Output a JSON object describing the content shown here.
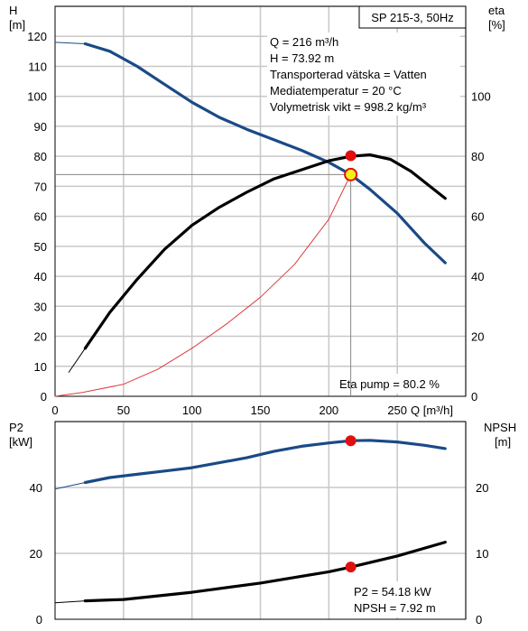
{
  "chart_data": [
    {
      "type": "line",
      "title": "SP 215-3, 50Hz",
      "xlabel": "Q [m³/h]",
      "ylabel_left": [
        "H",
        "[m]"
      ],
      "ylabel_right": [
        "eta",
        "[%]"
      ],
      "xlim": [
        0,
        300
      ],
      "ylim_left": [
        0,
        130
      ],
      "ylim_right": [
        0,
        130
      ],
      "x_ticks": [
        0,
        50,
        100,
        150,
        200,
        250
      ],
      "y_ticks_left": [
        0,
        10,
        20,
        30,
        40,
        50,
        60,
        70,
        80,
        90,
        100,
        110,
        120
      ],
      "y_ticks_right": [
        0,
        20,
        40,
        60,
        80,
        100
      ],
      "grid": true,
      "series": [
        {
          "name": "H",
          "axis": "left",
          "color": "#1a4a86",
          "points": [
            [
              22,
              117.5
            ],
            [
              40,
              115
            ],
            [
              60,
              110
            ],
            [
              80,
              104
            ],
            [
              100,
              98
            ],
            [
              120,
              93
            ],
            [
              140,
              89
            ],
            [
              160,
              85.5
            ],
            [
              180,
              82
            ],
            [
              200,
              78
            ],
            [
              216,
              73.9
            ],
            [
              230,
              69
            ],
            [
              250,
              61
            ],
            [
              270,
              51
            ],
            [
              285,
              44.5
            ]
          ]
        },
        {
          "name": "H (extrapolated)",
          "axis": "left",
          "color": "#1a4a86",
          "points": [
            [
              0,
              118
            ],
            [
              22,
              117.5
            ]
          ]
        },
        {
          "name": "eta",
          "axis": "right",
          "color": "#000000",
          "points": [
            [
              22,
              16
            ],
            [
              40,
              28
            ],
            [
              60,
              39
            ],
            [
              80,
              49
            ],
            [
              100,
              57
            ],
            [
              120,
              63
            ],
            [
              140,
              68
            ],
            [
              160,
              72.5
            ],
            [
              180,
              75.5
            ],
            [
              200,
              78.5
            ],
            [
              216,
              80
            ],
            [
              230,
              80.5
            ],
            [
              245,
              79
            ],
            [
              260,
              75
            ],
            [
              285,
              66
            ]
          ]
        },
        {
          "name": "eta (extrapolated)",
          "axis": "right",
          "color": "#000000",
          "points": [
            [
              10,
              8
            ],
            [
              22,
              16
            ]
          ]
        },
        {
          "name": "system curve",
          "axis": "left",
          "color": "#e03a3a",
          "points": [
            [
              0,
              0
            ],
            [
              20,
              1.3
            ],
            [
              50,
              4
            ],
            [
              75,
              9
            ],
            [
              100,
              16
            ],
            [
              125,
              24
            ],
            [
              150,
              33
            ],
            [
              175,
              44
            ],
            [
              200,
              59
            ],
            [
              216,
              73.9
            ]
          ]
        }
      ],
      "operating_point": {
        "x": 216,
        "y_left": 73.92,
        "eta": 80.2
      },
      "annotations": {
        "info_lines": [
          "Q = 216 m³/h",
          "H = 73.92 m",
          "Transporterad vätska = Vatten",
          "Mediatemperatur = 20 °C",
          "Volymetrisk vikt = 998.2 kg/m³"
        ],
        "eta_label": "Eta pump = 80.2 %"
      }
    },
    {
      "type": "line",
      "ylabel_left": [
        "P2",
        "[kW]"
      ],
      "ylabel_right": [
        "NPSH",
        "[m]"
      ],
      "xlim": [
        0,
        300
      ],
      "ylim_left": [
        0,
        60
      ],
      "ylim_right": [
        0,
        30
      ],
      "y_ticks_left": [
        0,
        20,
        40
      ],
      "y_ticks_right": [
        0,
        10,
        20
      ],
      "grid": true,
      "series": [
        {
          "name": "P2",
          "axis": "left",
          "color": "#1a4a86",
          "points": [
            [
              22,
              41.5
            ],
            [
              40,
              43
            ],
            [
              60,
              44
            ],
            [
              80,
              45
            ],
            [
              100,
              46
            ],
            [
              120,
              47.5
            ],
            [
              140,
              49
            ],
            [
              160,
              51
            ],
            [
              180,
              52.5
            ],
            [
              200,
              53.5
            ],
            [
              216,
              54.2
            ],
            [
              230,
              54.3
            ],
            [
              250,
              53.8
            ],
            [
              270,
              52.8
            ],
            [
              285,
              51.8
            ]
          ]
        },
        {
          "name": "P2 (extrapolated)",
          "axis": "left",
          "color": "#1a4a86",
          "points": [
            [
              0,
              39.5
            ],
            [
              22,
              41.5
            ]
          ]
        },
        {
          "name": "NPSH",
          "axis": "right",
          "color": "#000000",
          "points": [
            [
              22,
              2.8
            ],
            [
              50,
              3.0
            ],
            [
              100,
              4.1
            ],
            [
              150,
              5.5
            ],
            [
              200,
              7.2
            ],
            [
              216,
              7.92
            ],
            [
              250,
              9.6
            ],
            [
              285,
              11.7
            ]
          ]
        },
        {
          "name": "NPSH (extrapolated)",
          "axis": "right",
          "color": "#000000",
          "points": [
            [
              0,
              2.5
            ],
            [
              22,
              2.8
            ]
          ]
        }
      ],
      "operating_point": {
        "x": 216,
        "p2": 54.18,
        "npsh": 7.92
      },
      "annotations": {
        "info_lines": [
          "P2 = 54.18 kW",
          "NPSH = 7.92 m"
        ]
      }
    }
  ],
  "colors": {
    "blue": "#1a4a86",
    "marker_red": "#e01010",
    "marker_yellow": "#f4f01a",
    "grid": "#c8c8c8",
    "thin_red": "#e03a3a"
  }
}
